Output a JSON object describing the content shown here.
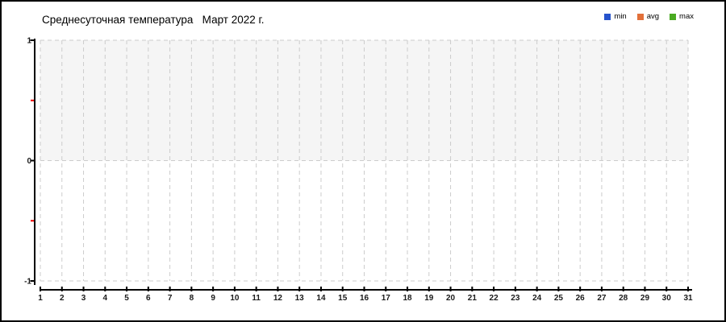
{
  "window": {
    "background": "#ffffff",
    "border_color": "#000000"
  },
  "header": {
    "title": "Среднесуточная температура   Март 2022 г."
  },
  "legend": {
    "position": "top-right",
    "items": [
      {
        "label": "min",
        "color": "#2653cc"
      },
      {
        "label": "avg",
        "color": "#e2703a"
      },
      {
        "label": "max",
        "color": "#4aaa22"
      }
    ]
  },
  "chart_data": {
    "type": "line",
    "title": "Среднесуточная температура",
    "subtitle": "Март 2022 г.",
    "xlabel": "",
    "ylabel": "",
    "x": [
      1,
      2,
      3,
      4,
      5,
      6,
      7,
      8,
      9,
      10,
      11,
      12,
      13,
      14,
      15,
      16,
      17,
      18,
      19,
      20,
      21,
      22,
      23,
      24,
      25,
      26,
      27,
      28,
      29,
      30,
      31
    ],
    "series": [
      {
        "name": "min",
        "color": "#2653cc",
        "values": []
      },
      {
        "name": "avg",
        "color": "#e2703a",
        "values": []
      },
      {
        "name": "max",
        "color": "#4aaa22",
        "values": []
      }
    ],
    "no_data": true,
    "ylim": [
      -1,
      1
    ],
    "y_ticks": [
      1,
      0,
      -1
    ],
    "y_minor_ticks": [
      0.5,
      -0.5
    ],
    "grid": "dashed",
    "grid_color": "#cccccc",
    "axis_color": "#000000",
    "minor_tick_color": "#f00000",
    "band_fill": {
      "from": 0,
      "to": 1,
      "color": "#f5f5f5"
    },
    "legend_position": "top-right"
  }
}
